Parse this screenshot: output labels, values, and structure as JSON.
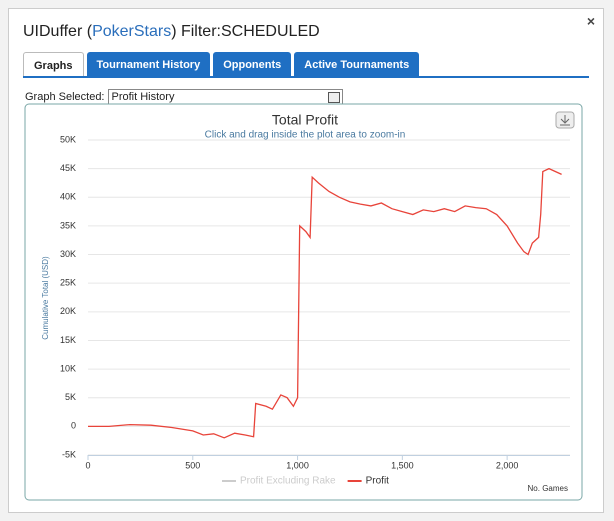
{
  "header": {
    "title_prefix": "UIDuffer (",
    "site": "PokerStars",
    "title_suffix": ") Filter:SCHEDULED",
    "close": "×"
  },
  "tabs": [
    "Graphs",
    "Tournament History",
    "Opponents",
    "Active Tournaments"
  ],
  "active_tab": 0,
  "graph_select": {
    "label": "Graph Selected:",
    "value": "Profit History"
  },
  "chart_data": {
    "type": "line",
    "title": "Total Profit",
    "subtitle": "Click and drag inside the plot area to zoom-in",
    "y_label": "Cumulative Total (USD)",
    "x_label": "No. Games",
    "xlim": [
      0,
      2300
    ],
    "ylim": [
      -5000,
      50000
    ],
    "xticks": [
      0,
      500,
      {
        "value": 1000,
        "label": "1,000"
      },
      {
        "value": 1500,
        "label": "1,500"
      },
      {
        "value": 2000,
        "label": "2,000"
      }
    ],
    "yticks": [
      {
        "value": -5000,
        "label": "-5K"
      },
      0,
      {
        "value": 5000,
        "label": "5K"
      },
      {
        "value": 10000,
        "label": "10K"
      },
      {
        "value": 15000,
        "label": "15K"
      },
      {
        "value": 20000,
        "label": "20K"
      },
      {
        "value": 25000,
        "label": "25K"
      },
      {
        "value": 30000,
        "label": "30K"
      },
      {
        "value": 35000,
        "label": "35K"
      },
      {
        "value": 40000,
        "label": "40K"
      },
      {
        "value": 45000,
        "label": "45K"
      },
      {
        "value": 50000,
        "label": "50K"
      }
    ],
    "grid": true,
    "series": [
      {
        "name": "Profit Excluding Rake",
        "color": "#cccccc",
        "visible": false
      },
      {
        "name": "Profit",
        "color": "#e8443a",
        "visible": true,
        "x": [
          0,
          100,
          200,
          300,
          400,
          500,
          550,
          600,
          650,
          700,
          750,
          790,
          800,
          850,
          880,
          920,
          950,
          980,
          1000,
          1010,
          1040,
          1060,
          1070,
          1100,
          1150,
          1200,
          1250,
          1300,
          1350,
          1400,
          1450,
          1500,
          1550,
          1600,
          1650,
          1700,
          1750,
          1800,
          1850,
          1900,
          1950,
          2000,
          2050,
          2080,
          2100,
          2120,
          2150,
          2160,
          2170,
          2200,
          2230,
          2260
        ],
        "values": [
          0,
          0,
          300,
          200,
          -200,
          -800,
          -1500,
          -1300,
          -2000,
          -1200,
          -1500,
          -1800,
          4000,
          3500,
          3000,
          5500,
          5000,
          3500,
          5000,
          35000,
          34000,
          33000,
          43500,
          42500,
          41000,
          40000,
          39200,
          38800,
          38500,
          39000,
          38000,
          37500,
          37000,
          37800,
          37500,
          38000,
          37500,
          38500,
          38200,
          38000,
          37000,
          35000,
          32000,
          30500,
          30000,
          32000,
          33000,
          37000,
          44500,
          45000,
          44500,
          44000
        ]
      }
    ]
  }
}
